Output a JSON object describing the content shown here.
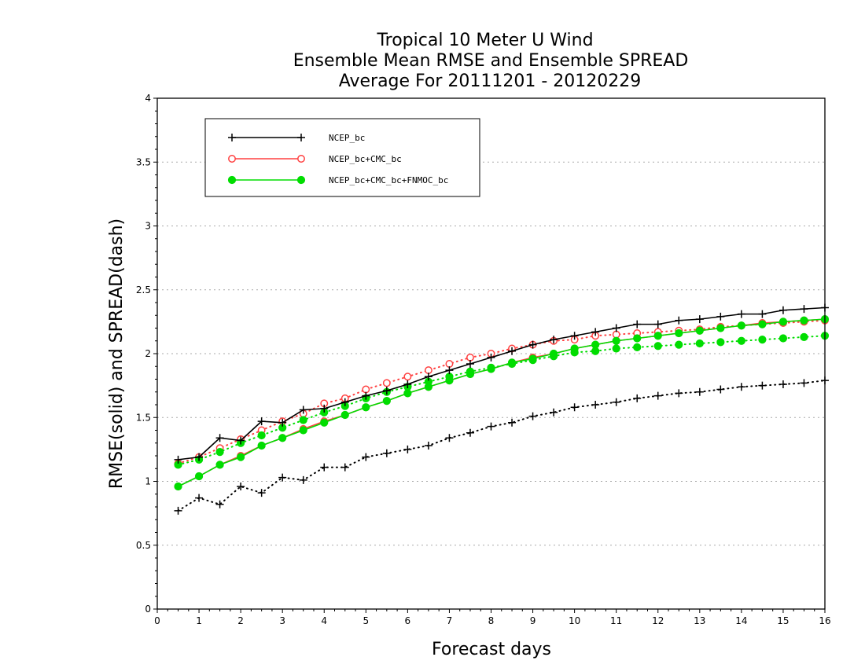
{
  "chart_data": {
    "type": "line",
    "title": [
      "Tropical 10 Meter U Wind",
      "Ensemble Mean RMSE and Ensemble SPREAD",
      "Average For 20111201 - 20120229"
    ],
    "xlabel": "Forecast days",
    "ylabel": "RMSE(solid) and SPREAD(dash)",
    "xlim": [
      0,
      16
    ],
    "ylim": [
      0,
      4
    ],
    "xticks": [
      "0",
      "1",
      "2",
      "3",
      "4",
      "5",
      "6",
      "7",
      "8",
      "9",
      "10",
      "11",
      "12",
      "13",
      "14",
      "15",
      "16"
    ],
    "yticks": [
      "0",
      "0.5",
      "1",
      "1.5",
      "2",
      "2.5",
      "3",
      "3.5",
      "4"
    ],
    "grid": true,
    "legend_position": "top-left",
    "x": [
      0.5,
      1,
      1.5,
      2,
      2.5,
      3,
      3.5,
      4,
      4.5,
      5,
      5.5,
      6,
      6.5,
      7,
      7.5,
      8,
      8.5,
      9,
      9.5,
      10,
      10.5,
      11,
      11.5,
      12,
      12.5,
      13,
      13.5,
      14,
      14.5,
      15,
      15.5,
      16
    ],
    "series": [
      {
        "name": "NCEP_bc",
        "color": "#000000",
        "marker": "plus",
        "rmse": [
          1.17,
          1.19,
          1.34,
          1.32,
          1.47,
          1.46,
          1.56,
          1.57,
          1.62,
          1.67,
          1.71,
          1.76,
          1.82,
          1.87,
          1.92,
          1.97,
          2.02,
          2.07,
          2.11,
          2.14,
          2.17,
          2.2,
          2.23,
          2.23,
          2.26,
          2.27,
          2.29,
          2.31,
          2.31,
          2.34,
          2.35,
          2.36
        ],
        "spread": [
          0.77,
          0.87,
          0.82,
          0.96,
          0.91,
          1.03,
          1.01,
          1.11,
          1.11,
          1.19,
          1.22,
          1.25,
          1.28,
          1.34,
          1.38,
          1.43,
          1.46,
          1.51,
          1.54,
          1.58,
          1.6,
          1.62,
          1.65,
          1.67,
          1.69,
          1.7,
          1.72,
          1.74,
          1.75,
          1.76,
          1.77,
          1.79
        ]
      },
      {
        "name": "NCEP_bc+CMC_bc",
        "color": "#ff4040",
        "marker": "circle-open",
        "rmse": [
          0.96,
          1.04,
          1.13,
          1.2,
          1.28,
          1.34,
          1.41,
          1.47,
          1.52,
          1.58,
          1.63,
          1.69,
          1.74,
          1.79,
          1.84,
          1.88,
          1.93,
          1.97,
          2.0,
          2.04,
          2.07,
          2.1,
          2.12,
          2.14,
          2.16,
          2.18,
          2.2,
          2.22,
          2.24,
          2.25,
          2.26,
          2.27
        ],
        "spread": [
          1.14,
          1.19,
          1.26,
          1.33,
          1.4,
          1.47,
          1.53,
          1.61,
          1.65,
          1.72,
          1.77,
          1.82,
          1.87,
          1.92,
          1.97,
          2.0,
          2.04,
          2.07,
          2.1,
          2.11,
          2.14,
          2.15,
          2.16,
          2.17,
          2.18,
          2.19,
          2.21,
          2.22,
          2.23,
          2.24,
          2.25,
          2.26
        ]
      },
      {
        "name": "NCEP_bc+CMC_bc+FNMOC_bc",
        "color": "#00dd00",
        "marker": "circle-filled",
        "rmse": [
          0.96,
          1.04,
          1.13,
          1.19,
          1.28,
          1.34,
          1.4,
          1.46,
          1.52,
          1.58,
          1.63,
          1.69,
          1.74,
          1.79,
          1.84,
          1.88,
          1.93,
          1.96,
          2.0,
          2.04,
          2.07,
          2.1,
          2.12,
          2.14,
          2.16,
          2.18,
          2.2,
          2.22,
          2.23,
          2.25,
          2.26,
          2.27
        ],
        "spread": [
          1.13,
          1.17,
          1.23,
          1.3,
          1.36,
          1.42,
          1.48,
          1.54,
          1.59,
          1.65,
          1.7,
          1.74,
          1.78,
          1.82,
          1.86,
          1.89,
          1.92,
          1.95,
          1.98,
          2.01,
          2.02,
          2.04,
          2.05,
          2.06,
          2.07,
          2.08,
          2.09,
          2.1,
          2.11,
          2.12,
          2.13,
          2.14
        ]
      }
    ]
  }
}
